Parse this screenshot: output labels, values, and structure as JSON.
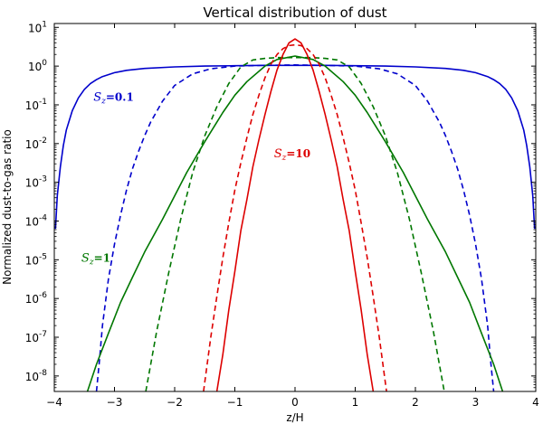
{
  "chart_data": {
    "type": "line",
    "title": "Vertical distribution of dust",
    "xlabel": "z/H",
    "ylabel": "Normalized dust-to-gas ratio",
    "xlim": [
      -4,
      4
    ],
    "ylim_log10": [
      -8.4,
      1.1
    ],
    "log_scale_y": true,
    "grid": false,
    "x_ticks": [
      -4,
      -3,
      -2,
      -1,
      0,
      1,
      2,
      3,
      4
    ],
    "x_tick_labels": [
      "−4",
      "−3",
      "−2",
      "−1",
      "0",
      "1",
      "2",
      "3",
      "4"
    ],
    "y_ticks_exp": [
      -8,
      -7,
      -6,
      -5,
      -4,
      -3,
      -2,
      -1,
      0,
      1
    ],
    "y_tick_labels": [
      {
        "base": "10",
        "exp": "-8"
      },
      {
        "base": "10",
        "exp": "-7"
      },
      {
        "base": "10",
        "exp": "-6"
      },
      {
        "base": "10",
        "exp": "-5"
      },
      {
        "base": "10",
        "exp": "-4"
      },
      {
        "base": "10",
        "exp": "-3"
      },
      {
        "base": "10",
        "exp": "-2"
      },
      {
        "base": "10",
        "exp": "-1"
      },
      {
        "base": "10",
        "exp": "0"
      },
      {
        "base": "10",
        "exp": "1"
      }
    ],
    "series": [
      {
        "color": "#0000cc",
        "style": "solid",
        "x": [
          -3.98,
          -3.95,
          -3.9,
          -3.85,
          -3.8,
          -3.7,
          -3.6,
          -3.5,
          -3.4,
          -3.3,
          -3.2,
          -3.0,
          -2.8,
          -2.5,
          -2.0,
          -1.5,
          -1.0,
          -0.5,
          0,
          0.5,
          1.0,
          1.5,
          2.0,
          2.5,
          2.8,
          3.0,
          3.2,
          3.3,
          3.4,
          3.5,
          3.6,
          3.7,
          3.8,
          3.85,
          3.9,
          3.95,
          3.98
        ],
        "y_log10": [
          -4.2,
          -3.35,
          -2.6,
          -2.05,
          -1.65,
          -1.15,
          -0.82,
          -0.6,
          -0.45,
          -0.35,
          -0.27,
          -0.17,
          -0.11,
          -0.06,
          -0.02,
          0.0,
          0.01,
          0.02,
          0.02,
          0.02,
          0.01,
          0.0,
          -0.02,
          -0.06,
          -0.11,
          -0.17,
          -0.27,
          -0.35,
          -0.45,
          -0.6,
          -0.82,
          -1.15,
          -1.65,
          -2.05,
          -2.6,
          -3.35,
          -4.2
        ]
      },
      {
        "color": "#0000cc",
        "style": "dashed",
        "x": [
          -3.3,
          -3.25,
          -3.2,
          -3.1,
          -3.0,
          -2.9,
          -2.8,
          -2.7,
          -2.6,
          -2.5,
          -2.4,
          -2.2,
          -2.0,
          -1.7,
          -1.4,
          -1.0,
          -0.5,
          0,
          0.5,
          1.0,
          1.4,
          1.7,
          2.0,
          2.2,
          2.4,
          2.5,
          2.6,
          2.7,
          2.8,
          2.9,
          3.0,
          3.1,
          3.2,
          3.25,
          3.3
        ],
        "y_log10": [
          -8.4,
          -7.6,
          -6.7,
          -5.5,
          -4.6,
          -3.85,
          -3.2,
          -2.65,
          -2.2,
          -1.8,
          -1.45,
          -0.9,
          -0.5,
          -0.2,
          -0.07,
          0.0,
          0.02,
          0.03,
          0.02,
          0.0,
          -0.07,
          -0.2,
          -0.5,
          -0.9,
          -1.45,
          -1.8,
          -2.2,
          -2.65,
          -3.2,
          -3.85,
          -4.6,
          -5.5,
          -6.7,
          -7.6,
          -8.4
        ]
      },
      {
        "color": "#007700",
        "style": "solid",
        "x": [
          -3.45,
          -3.3,
          -3.1,
          -2.9,
          -2.7,
          -2.5,
          -2.2,
          -2.0,
          -1.8,
          -1.5,
          -1.2,
          -1.0,
          -0.8,
          -0.5,
          -0.3,
          0,
          0.3,
          0.5,
          0.8,
          1.0,
          1.2,
          1.5,
          1.8,
          2.0,
          2.2,
          2.5,
          2.7,
          2.9,
          3.1,
          3.3,
          3.45
        ],
        "y_log10": [
          -8.4,
          -7.7,
          -6.9,
          -6.1,
          -5.45,
          -4.8,
          -3.95,
          -3.35,
          -2.75,
          -1.95,
          -1.2,
          -0.75,
          -0.4,
          0.0,
          0.17,
          0.26,
          0.17,
          0.0,
          -0.4,
          -0.75,
          -1.2,
          -1.95,
          -2.75,
          -3.35,
          -3.95,
          -4.8,
          -5.45,
          -6.1,
          -6.9,
          -7.7,
          -8.4
        ]
      },
      {
        "color": "#007700",
        "style": "dashed",
        "x": [
          -2.48,
          -2.3,
          -2.1,
          -1.9,
          -1.7,
          -1.5,
          -1.3,
          -1.1,
          -0.9,
          -0.7,
          -0.5,
          -0.3,
          0,
          0.3,
          0.5,
          0.7,
          0.9,
          1.1,
          1.3,
          1.5,
          1.7,
          1.9,
          2.1,
          2.3,
          2.48
        ],
        "y_log10": [
          -8.4,
          -6.85,
          -5.35,
          -3.95,
          -2.75,
          -1.8,
          -1.05,
          -0.45,
          -0.02,
          0.16,
          0.2,
          0.22,
          0.22,
          0.22,
          0.2,
          0.16,
          -0.02,
          -0.45,
          -1.05,
          -1.8,
          -2.75,
          -3.95,
          -5.35,
          -6.85,
          -8.4
        ]
      },
      {
        "color": "#dd0000",
        "style": "solid",
        "x": [
          -1.3,
          -1.2,
          -1.1,
          -1.0,
          -0.9,
          -0.8,
          -0.7,
          -0.6,
          -0.5,
          -0.4,
          -0.3,
          -0.2,
          -0.1,
          0,
          0.1,
          0.2,
          0.3,
          0.4,
          0.5,
          0.6,
          0.7,
          0.8,
          0.9,
          1.0,
          1.1,
          1.2,
          1.3
        ],
        "y_log10": [
          -8.4,
          -7.45,
          -6.3,
          -5.3,
          -4.25,
          -3.45,
          -2.6,
          -1.9,
          -1.25,
          -0.65,
          -0.1,
          0.3,
          0.6,
          0.7,
          0.6,
          0.3,
          -0.1,
          -0.65,
          -1.25,
          -1.9,
          -2.6,
          -3.45,
          -4.25,
          -5.3,
          -6.3,
          -7.45,
          -8.4
        ]
      },
      {
        "color": "#dd0000",
        "style": "dashed",
        "x": [
          -1.52,
          -1.4,
          -1.3,
          -1.2,
          -1.1,
          -1.0,
          -0.9,
          -0.8,
          -0.7,
          -0.6,
          -0.5,
          -0.4,
          -0.3,
          -0.2,
          -0.1,
          0,
          0.1,
          0.2,
          0.3,
          0.4,
          0.5,
          0.6,
          0.7,
          0.8,
          0.9,
          1.0,
          1.1,
          1.2,
          1.3,
          1.4,
          1.52
        ],
        "y_log10": [
          -8.4,
          -7.0,
          -5.95,
          -4.95,
          -4.05,
          -3.2,
          -2.5,
          -1.85,
          -1.25,
          -0.75,
          -0.3,
          0.05,
          0.3,
          0.45,
          0.53,
          0.55,
          0.53,
          0.45,
          0.3,
          0.05,
          -0.3,
          -0.75,
          -1.25,
          -1.85,
          -2.5,
          -3.2,
          -4.05,
          -4.95,
          -5.95,
          -7.0,
          -8.4
        ]
      }
    ],
    "annotations": [
      {
        "label": "S",
        "sub": "z",
        "rest": "=0.1",
        "color": "#0000cc",
        "at": [
          -3.35,
          -0.9
        ]
      },
      {
        "label": "S",
        "sub": "z",
        "rest": "=10",
        "color": "#dd0000",
        "at": [
          -0.35,
          -2.35
        ]
      },
      {
        "label": "S",
        "sub": "z",
        "rest": "=1",
        "color": "#007700",
        "at": [
          -3.55,
          -5.05
        ]
      }
    ]
  }
}
